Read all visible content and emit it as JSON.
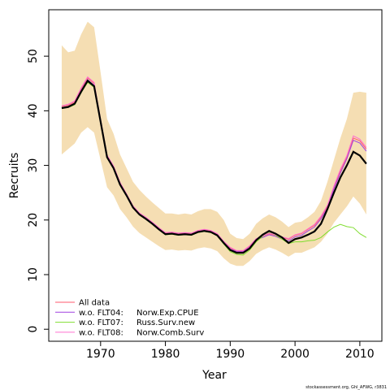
{
  "chart_data": {
    "type": "line",
    "x_label": "Year",
    "y_label": "Recruits",
    "footnote": "stockassessment.org, Ghl_AFWG, r3831",
    "x": [
      1964,
      1965,
      1966,
      1967,
      1968,
      1969,
      1970,
      1971,
      1972,
      1973,
      1974,
      1975,
      1976,
      1977,
      1978,
      1979,
      1980,
      1981,
      1982,
      1983,
      1984,
      1985,
      1986,
      1987,
      1988,
      1989,
      1990,
      1991,
      1992,
      1993,
      1994,
      1995,
      1996,
      1997,
      1998,
      1999,
      2000,
      2001,
      2002,
      2003,
      2004,
      2005,
      2006,
      2007,
      2008,
      2009,
      2010,
      2011
    ],
    "band_color": "#f5deb3",
    "band_upper": [
      52,
      50.7,
      51,
      54,
      56.3,
      55.3,
      47,
      38.5,
      35.8,
      32,
      29.5,
      27,
      25.5,
      24.3,
      23.2,
      22.2,
      21.2,
      21.2,
      21,
      21.2,
      21,
      21.6,
      22,
      22,
      21.5,
      20,
      17.5,
      16.7,
      16.5,
      17.5,
      19.3,
      20.3,
      21,
      20.5,
      19.7,
      18.7,
      19.5,
      19.7,
      20.5,
      21.5,
      23.5,
      27,
      31,
      35,
      38.5,
      43.3,
      43.5,
      43.3
    ],
    "band_lower": [
      32,
      33,
      34,
      36,
      37,
      36,
      31,
      26,
      24.5,
      22,
      20.5,
      18.8,
      17.6,
      16.8,
      16,
      15.2,
      14.5,
      14.6,
      14.4,
      14.5,
      14.4,
      14.8,
      15,
      14.8,
      14.3,
      13,
      12,
      11.6,
      11.6,
      12.5,
      13.8,
      14.5,
      15,
      14.6,
      14,
      13.3,
      14,
      14,
      14.5,
      15,
      16,
      17.5,
      19.5,
      21,
      22.5,
      24.3,
      23,
      21
    ],
    "series": [
      {
        "name": "All data",
        "color": "#ff5a6e",
        "values": [
          40.8,
          41,
          41.6,
          44,
          46,
          45,
          38.3,
          31.8,
          29.8,
          26.8,
          24.7,
          22.5,
          21.2,
          20.4,
          19.5,
          18.5,
          17.6,
          17.7,
          17.5,
          17.6,
          17.5,
          18,
          18.2,
          18,
          17.4,
          16,
          14.9,
          14.3,
          14.3,
          15.2,
          16.5,
          17,
          17.5,
          17.2,
          16.8,
          16.5,
          17.2,
          17.5,
          18.3,
          19,
          20.5,
          22.5,
          26,
          29,
          31.5,
          35,
          34.5,
          33
        ]
      },
      {
        "name": "w.o. FLT04:",
        "fleet": "Norw.Exp.CPUE",
        "color": "#a040e0",
        "values": [
          40.6,
          40.8,
          41.4,
          43.7,
          45.7,
          44.7,
          38.1,
          31.6,
          29.6,
          26.6,
          24.6,
          22.4,
          21.1,
          20.3,
          19.4,
          18.4,
          17.5,
          17.6,
          17.4,
          17.5,
          17.4,
          17.9,
          18.1,
          17.9,
          17.3,
          15.9,
          14.7,
          14.2,
          14.2,
          15,
          16.4,
          16.8,
          17.3,
          17,
          16.5,
          16.2,
          16.9,
          17.2,
          18,
          18.7,
          20.2,
          22.2,
          25.7,
          28.6,
          31.2,
          34.6,
          34.1,
          32.6
        ]
      },
      {
        "name": "w.o. FLT07:",
        "fleet": "Russ.Surv.new",
        "color": "#80dd30",
        "values": [
          40.4,
          40.6,
          41.1,
          43.3,
          45.2,
          44.3,
          37.8,
          31.4,
          29.4,
          26.4,
          24.4,
          22.2,
          20.9,
          20.1,
          19.2,
          18.2,
          17.3,
          17.4,
          17.2,
          17.3,
          17.2,
          17.7,
          17.9,
          17.7,
          17.1,
          15.6,
          14.2,
          13.7,
          13.6,
          14.5,
          16,
          17,
          17.7,
          17.2,
          16.5,
          15.7,
          16,
          16,
          16.2,
          16.3,
          16.8,
          17.8,
          18.7,
          19.2,
          18.8,
          18.6,
          17.5,
          16.8
        ]
      },
      {
        "name": "w.o. FLT08:",
        "fleet": "Norw.Comb.Surv",
        "color": "#ff70d0",
        "values": [
          40.9,
          41.2,
          41.8,
          44.2,
          46.2,
          45.2,
          38.4,
          31.9,
          29.9,
          26.9,
          24.8,
          22.6,
          21.3,
          20.5,
          19.6,
          18.6,
          17.7,
          17.8,
          17.6,
          17.7,
          17.6,
          18.1,
          18.3,
          18.1,
          17.5,
          16.1,
          15,
          14.4,
          14.4,
          15.3,
          16.6,
          17.1,
          17.6,
          17.3,
          16.9,
          16.6,
          17.3,
          17.6,
          18.4,
          19.2,
          20.7,
          22.7,
          26.2,
          29.3,
          31.8,
          35.4,
          34.8,
          33.3
        ]
      },
      {
        "color": "#000000",
        "values": [
          40.5,
          40.7,
          41.3,
          43.5,
          45.5,
          44.5,
          38,
          31.5,
          29.5,
          26.5,
          24.5,
          22.3,
          21,
          20.2,
          19.3,
          18.3,
          17.4,
          17.5,
          17.3,
          17.4,
          17.3,
          17.8,
          18,
          17.8,
          17.2,
          15.8,
          14.5,
          14,
          14,
          14.8,
          16.3,
          17.3,
          18,
          17.5,
          16.8,
          15.8,
          16.5,
          16.8,
          17.3,
          17.9,
          19.3,
          22,
          25,
          27.8,
          30,
          32.5,
          31.8,
          30.3
        ]
      }
    ],
    "xlim": [
      1962,
      2013.4
    ],
    "ylim": [
      -2.2,
      58.5
    ],
    "xticks": [
      1970,
      1980,
      1990,
      2000,
      2010
    ],
    "yticks": [
      0,
      10,
      20,
      30,
      40,
      50
    ],
    "legend": "bottom-left"
  }
}
